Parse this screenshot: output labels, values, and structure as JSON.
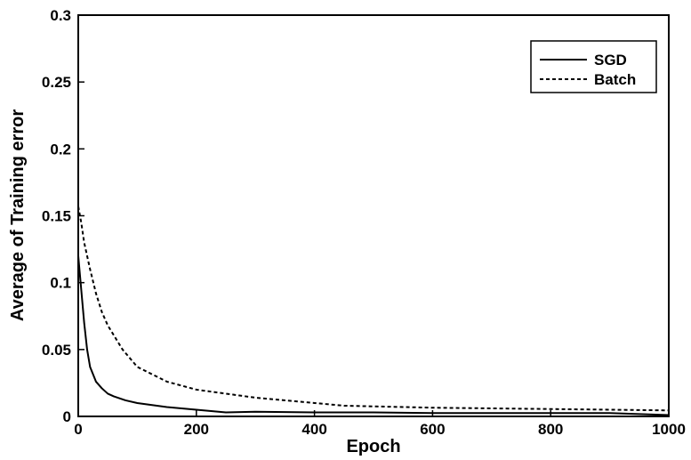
{
  "chart_data": {
    "type": "line",
    "title": "",
    "xlabel": "Epoch",
    "ylabel": "Average of Training error",
    "xlim": [
      0,
      1000
    ],
    "ylim": [
      0,
      0.3
    ],
    "x_ticks": [
      0,
      200,
      400,
      600,
      800,
      1000
    ],
    "y_ticks": [
      0,
      0.05,
      0.1,
      0.15,
      0.2,
      0.25,
      0.3
    ],
    "x_tick_labels": [
      "0",
      "200",
      "400",
      "600",
      "800",
      "1000"
    ],
    "y_tick_labels": [
      "0",
      "0.05",
      "0.1",
      "0.15",
      "0.2",
      "0.25",
      "0.3"
    ],
    "grid": false,
    "legend_position": "top-right",
    "series": [
      {
        "name": "SGD",
        "line_style": "solid",
        "color": "#000000",
        "x": [
          0,
          5,
          10,
          15,
          20,
          30,
          40,
          50,
          60,
          80,
          100,
          150,
          200,
          250,
          300,
          400,
          500,
          600,
          700,
          800,
          900,
          1000
        ],
        "y": [
          0.12,
          0.095,
          0.07,
          0.05,
          0.037,
          0.026,
          0.021,
          0.017,
          0.015,
          0.012,
          0.01,
          0.007,
          0.005,
          0.003,
          0.0035,
          0.003,
          0.003,
          0.0025,
          0.0025,
          0.0025,
          0.0025,
          0.001
        ]
      },
      {
        "name": "Batch",
        "line_style": "dashed",
        "color": "#000000",
        "x": [
          0,
          5,
          10,
          20,
          30,
          40,
          50,
          75,
          100,
          150,
          200,
          250,
          300,
          400,
          450,
          500,
          600,
          700,
          800,
          900,
          1000
        ],
        "y": [
          0.157,
          0.145,
          0.13,
          0.11,
          0.092,
          0.078,
          0.068,
          0.05,
          0.037,
          0.026,
          0.02,
          0.017,
          0.014,
          0.01,
          0.008,
          0.0075,
          0.0065,
          0.006,
          0.0055,
          0.005,
          0.0045
        ]
      }
    ]
  }
}
